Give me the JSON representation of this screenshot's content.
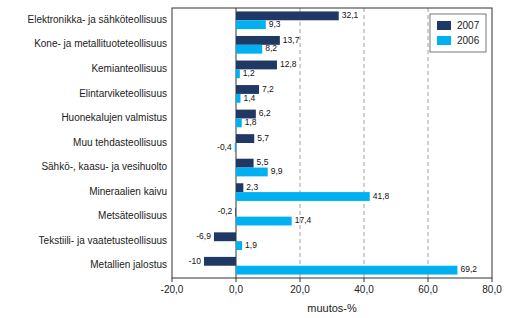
{
  "chart_data": {
    "type": "bar",
    "orientation": "horizontal",
    "categories": [
      "Elektronikka- ja sähköteollisuus",
      "Kone- ja metallituoteteollisuus",
      "Kemianteollisuus",
      "Elintarviketeollisuus",
      "Huonekalujen valmistus",
      "Muu tehdasteollisuus",
      "Sähkö-, kaasu- ja vesihuolto",
      "Mineraalien kaivu",
      "Metsäteollisuus",
      "Tekstiili- ja vaatetusteollisuus",
      "Metallien jalostus"
    ],
    "series": [
      {
        "name": "2007",
        "color": "#1F3864",
        "values": [
          32.1,
          13.7,
          12.8,
          7.2,
          6.2,
          5.7,
          5.5,
          2.3,
          -0.2,
          -6.9,
          -10.0
        ],
        "value_labels": [
          "32,1",
          "13,7",
          "12,8",
          "7,2",
          "6,2",
          "5,7",
          "5,5",
          "2,3",
          "-0,2",
          "-6,9",
          "-10"
        ]
      },
      {
        "name": "2006",
        "color": "#00B0F0",
        "values": [
          9.3,
          8.2,
          1.2,
          1.4,
          1.8,
          -0.4,
          9.9,
          41.8,
          17.4,
          1.9,
          69.2
        ],
        "value_labels": [
          "9,3",
          "8,2",
          "1,2",
          "1,4",
          "1,8",
          "-0,4",
          "9,9",
          "41,8",
          "17,4",
          "1,9",
          "69,2"
        ]
      }
    ],
    "xlabel": "muutos-%",
    "xlim": [
      -20,
      80
    ],
    "xticks": [
      {
        "value": -20.0,
        "label": "-20,0"
      },
      {
        "value": 0.0,
        "label": "0,0"
      },
      {
        "value": 20.0,
        "label": "20,0"
      },
      {
        "value": 40.0,
        "label": "40,0"
      },
      {
        "value": 60.0,
        "label": "60,0"
      },
      {
        "value": 80.0,
        "label": "80,0"
      }
    ],
    "grid": true,
    "legend": "upper right",
    "data_labels": true
  }
}
